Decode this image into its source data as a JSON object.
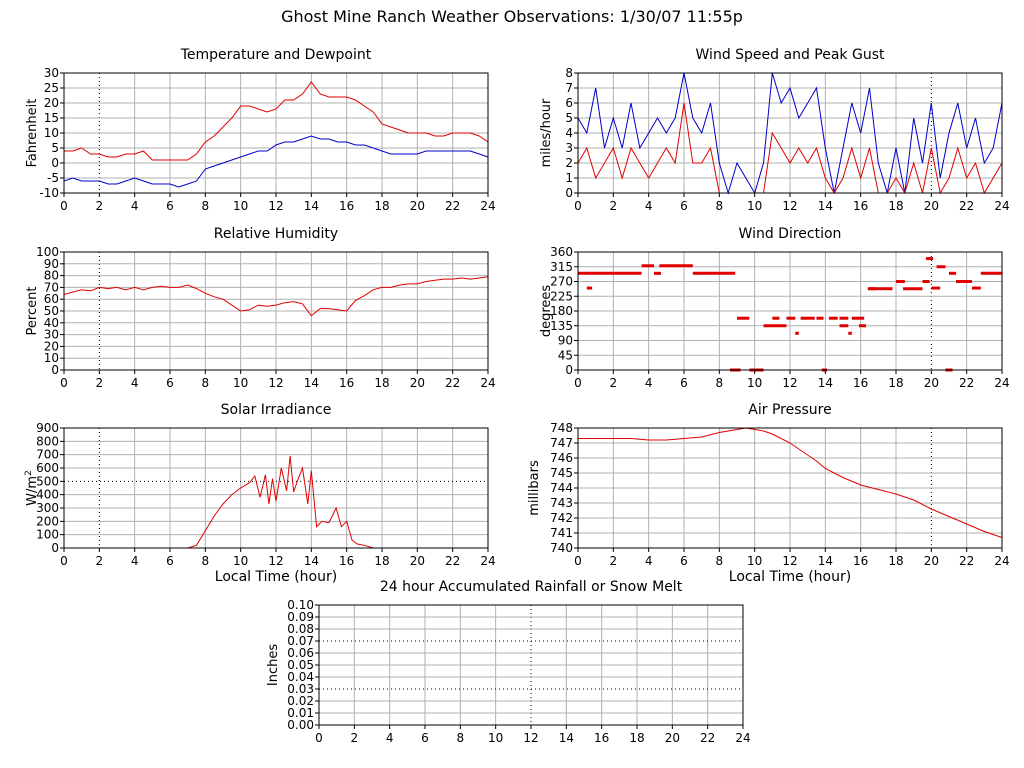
{
  "page": {
    "title": "Ghost Mine Ranch Weather Observations: 1/30/07 11:55p"
  },
  "colors": {
    "series_red": "#e00000",
    "series_blue": "#0000cc",
    "grid": "#b0b0b0",
    "frame": "#000000"
  },
  "chart_data": [
    {
      "id": "temperature",
      "type": "line",
      "title": "Temperature and Dewpoint",
      "xlabel": "",
      "ylabel": "Fahrenheit",
      "xlim": [
        0,
        24
      ],
      "ylim": [
        -10,
        30
      ],
      "xticks": [
        "0",
        "2",
        "4",
        "6",
        "8",
        "10",
        "12",
        "14",
        "16",
        "18",
        "20",
        "22",
        "24"
      ],
      "yticks": [
        "-10",
        "-5",
        "0",
        "5",
        "10",
        "15",
        "20",
        "25",
        "30"
      ],
      "grid": true,
      "series": [
        {
          "color": "#e00000",
          "x": [
            0,
            0.5,
            1,
            1.5,
            2,
            2.5,
            3,
            3.5,
            4,
            4.5,
            5,
            5.5,
            6,
            6.5,
            7,
            7.5,
            8,
            8.5,
            9,
            9.5,
            10,
            10.5,
            11,
            11.5,
            12,
            12.5,
            13,
            13.5,
            14,
            14.5,
            15,
            15.5,
            16,
            16.5,
            17,
            17.5,
            18,
            18.5,
            19,
            19.5,
            20,
            20.5,
            21,
            21.5,
            22,
            22.5,
            23,
            23.5,
            24
          ],
          "y": [
            4,
            4,
            5,
            3,
            3,
            2,
            2,
            3,
            3,
            4,
            1,
            1,
            1,
            1,
            1,
            3,
            7,
            9,
            12,
            15,
            19,
            19,
            18,
            17,
            18,
            21,
            21,
            23,
            27,
            23,
            22,
            22,
            22,
            21,
            19,
            17,
            13,
            12,
            11,
            10,
            10,
            10,
            9,
            9,
            10,
            10,
            10,
            9,
            7
          ]
        },
        {
          "color": "#0000cc",
          "x": [
            0,
            0.5,
            1,
            1.5,
            2,
            2.5,
            3,
            3.5,
            4,
            4.5,
            5,
            5.5,
            6,
            6.5,
            7,
            7.5,
            8,
            8.5,
            9,
            9.5,
            10,
            10.5,
            11,
            11.5,
            12,
            12.5,
            13,
            13.5,
            14,
            14.5,
            15,
            15.5,
            16,
            16.5,
            17,
            17.5,
            18,
            18.5,
            19,
            19.5,
            20,
            20.5,
            21,
            21.5,
            22,
            22.5,
            23,
            23.5,
            24
          ],
          "y": [
            -6,
            -5,
            -6,
            -6,
            -6,
            -7,
            -7,
            -6,
            -5,
            -6,
            -7,
            -7,
            -7,
            -8,
            -7,
            -6,
            -2,
            -1,
            0,
            1,
            2,
            3,
            4,
            4,
            6,
            7,
            7,
            8,
            9,
            8,
            8,
            7,
            7,
            6,
            6,
            5,
            4,
            3,
            3,
            3,
            3,
            4,
            4,
            4,
            4,
            4,
            4,
            3,
            2
          ]
        }
      ]
    },
    {
      "id": "wind_speed",
      "type": "line",
      "title": "Wind Speed and Peak Gust",
      "xlabel": "",
      "ylabel": "miles/hour",
      "xlim": [
        0,
        24
      ],
      "ylim": [
        0,
        8
      ],
      "xticks": [
        "0",
        "2",
        "4",
        "6",
        "8",
        "10",
        "12",
        "14",
        "16",
        "18",
        "20",
        "22",
        "24"
      ],
      "yticks": [
        "0",
        "1",
        "2",
        "3",
        "4",
        "5",
        "6",
        "7",
        "8"
      ],
      "grid": true,
      "series": [
        {
          "color": "#0000cc",
          "x": [
            0,
            0.5,
            1,
            1.5,
            2,
            2.5,
            3,
            3.5,
            4,
            4.5,
            5,
            5.5,
            6,
            6.5,
            7,
            7.5,
            8,
            8.5,
            9,
            9.5,
            10,
            10.5,
            11,
            11.5,
            12,
            12.5,
            13,
            13.5,
            14,
            14.5,
            15,
            15.5,
            16,
            16.5,
            17,
            17.5,
            18,
            18.5,
            19,
            19.5,
            20,
            20.5,
            21,
            21.5,
            22,
            22.5,
            23,
            23.5,
            24
          ],
          "y": [
            5,
            4,
            7,
            3,
            5,
            3,
            6,
            3,
            4,
            5,
            4,
            5,
            8,
            5,
            4,
            6,
            2,
            0,
            2,
            1,
            0,
            2,
            8,
            6,
            7,
            5,
            6,
            7,
            3,
            0,
            3,
            6,
            4,
            7,
            2,
            0,
            3,
            0,
            5,
            2,
            6,
            1,
            4,
            6,
            3,
            5,
            2,
            3,
            6
          ]
        },
        {
          "color": "#e00000",
          "x": [
            0,
            0.5,
            1,
            1.5,
            2,
            2.5,
            3,
            3.5,
            4,
            4.5,
            5,
            5.5,
            6,
            6.5,
            7,
            7.5,
            8,
            8.5,
            9,
            9.5,
            10,
            10.5,
            11,
            11.5,
            12,
            12.5,
            13,
            13.5,
            14,
            14.5,
            15,
            15.5,
            16,
            16.5,
            17,
            17.5,
            18,
            18.5,
            19,
            19.5,
            20,
            20.5,
            21,
            21.5,
            22,
            22.5,
            23,
            23.5,
            24
          ],
          "y": [
            2,
            3,
            1,
            2,
            3,
            1,
            3,
            2,
            1,
            2,
            3,
            2,
            6,
            2,
            2,
            3,
            0,
            0,
            0,
            0,
            0,
            0,
            4,
            3,
            2,
            3,
            2,
            3,
            1,
            0,
            1,
            3,
            1,
            3,
            0,
            0,
            1,
            0,
            2,
            0,
            3,
            0,
            1,
            3,
            1,
            2,
            0,
            1,
            2
          ]
        }
      ]
    },
    {
      "id": "humidity",
      "type": "line",
      "title": "Relative Humidity",
      "xlabel": "",
      "ylabel": "Percent",
      "xlim": [
        0,
        24
      ],
      "ylim": [
        0,
        100
      ],
      "xticks": [
        "0",
        "2",
        "4",
        "6",
        "8",
        "10",
        "12",
        "14",
        "16",
        "18",
        "20",
        "22",
        "24"
      ],
      "yticks": [
        "0",
        "10",
        "20",
        "30",
        "40",
        "50",
        "60",
        "70",
        "80",
        "90",
        "100"
      ],
      "grid": true,
      "series": [
        {
          "color": "#e00000",
          "x": [
            0,
            0.5,
            1,
            1.5,
            2,
            2.5,
            3,
            3.5,
            4,
            4.5,
            5,
            5.5,
            6,
            6.5,
            7,
            7.5,
            8,
            8.5,
            9,
            9.5,
            10,
            10.5,
            11,
            11.5,
            12,
            12.5,
            13,
            13.5,
            14,
            14.5,
            15,
            15.5,
            16,
            16.5,
            17,
            17.5,
            18,
            18.5,
            19,
            19.5,
            20,
            20.5,
            21,
            21.5,
            22,
            22.5,
            23,
            23.5,
            24
          ],
          "y": [
            64,
            66,
            68,
            67,
            70,
            69,
            70,
            68,
            70,
            68,
            70,
            71,
            70,
            70,
            72,
            69,
            65,
            62,
            60,
            55,
            50,
            51,
            55,
            54,
            55,
            57,
            58,
            56,
            46,
            52,
            52,
            51,
            50,
            59,
            63,
            68,
            70,
            70,
            72,
            73,
            73,
            75,
            76,
            77,
            77,
            78,
            77,
            78,
            79
          ]
        }
      ]
    },
    {
      "id": "wind_direction",
      "type": "scatter",
      "title": "Wind Direction",
      "xlabel": "",
      "ylabel": "degrees",
      "xlim": [
        0,
        24
      ],
      "ylim": [
        0,
        360
      ],
      "xticks": [
        "0",
        "2",
        "4",
        "6",
        "8",
        "10",
        "12",
        "14",
        "16",
        "18",
        "20",
        "22",
        "24"
      ],
      "yticks": [
        "0",
        "45",
        "90",
        "135",
        "180",
        "225",
        "270",
        "315",
        "360"
      ],
      "grid": true,
      "series": [
        {
          "color": "#e00000",
          "segments": [
            [
              0,
              3.6,
              295
            ],
            [
              0.5,
              0.8,
              250
            ],
            [
              3.6,
              4.3,
              318
            ],
            [
              4.3,
              4.7,
              295
            ],
            [
              4.6,
              6.5,
              318
            ],
            [
              6.5,
              8.9,
              295
            ],
            [
              8.6,
              9.2,
              0
            ],
            [
              9.0,
              9.7,
              158
            ],
            [
              9.7,
              10.5,
              0
            ],
            [
              10.5,
              11.8,
              135
            ],
            [
              11.0,
              11.4,
              158
            ],
            [
              11.8,
              12.3,
              158
            ],
            [
              12.3,
              12.5,
              112
            ],
            [
              12.6,
              13.4,
              158
            ],
            [
              13.5,
              13.9,
              158
            ],
            [
              13.8,
              14.1,
              0
            ],
            [
              14.2,
              14.7,
              158
            ],
            [
              14.8,
              15.3,
              158
            ],
            [
              14.8,
              15.3,
              135
            ],
            [
              15.3,
              15.5,
              112
            ],
            [
              15.5,
              16.2,
              158
            ],
            [
              15.9,
              16.3,
              135
            ],
            [
              16.4,
              16.8,
              248
            ],
            [
              16.5,
              17.0,
              248
            ],
            [
              17.0,
              17.8,
              248
            ],
            [
              18.0,
              18.5,
              270
            ],
            [
              18.4,
              19.5,
              248
            ],
            [
              19.5,
              19.9,
              270
            ],
            [
              19.7,
              20.1,
              340
            ],
            [
              20.0,
              20.5,
              250
            ],
            [
              20.3,
              20.8,
              315
            ],
            [
              20.8,
              21.2,
              0
            ],
            [
              21.0,
              21.4,
              295
            ],
            [
              21.4,
              22.3,
              270
            ],
            [
              22.3,
              22.8,
              250
            ],
            [
              22.8,
              24,
              295
            ]
          ]
        }
      ]
    },
    {
      "id": "solar",
      "type": "line",
      "title": "Solar Irradiance",
      "xlabel": "Local Time (hour)",
      "ylabel": "W/m",
      "ylabel_sup": "2",
      "xlim": [
        0,
        24
      ],
      "ylim": [
        0,
        900
      ],
      "xticks": [
        "0",
        "2",
        "4",
        "6",
        "8",
        "10",
        "12",
        "14",
        "16",
        "18",
        "20",
        "22",
        "24"
      ],
      "yticks": [
        "0",
        "100",
        "200",
        "300",
        "400",
        "500",
        "600",
        "700",
        "800",
        "900"
      ],
      "grid": true,
      "series": [
        {
          "color": "#e00000",
          "x": [
            0,
            7,
            7.5,
            8,
            8.5,
            9,
            9.5,
            10,
            10.5,
            10.8,
            11.1,
            11.4,
            11.6,
            11.8,
            12.0,
            12.3,
            12.6,
            12.8,
            13.0,
            13.2,
            13.5,
            13.8,
            14.0,
            14.3,
            14.6,
            15.0,
            15.4,
            15.7,
            16.0,
            16.3,
            16.6,
            17.0,
            17.5,
            24
          ],
          "y": [
            0,
            0,
            20,
            130,
            240,
            330,
            400,
            450,
            490,
            540,
            380,
            550,
            330,
            520,
            350,
            600,
            430,
            690,
            420,
            500,
            600,
            330,
            580,
            160,
            200,
            190,
            300,
            160,
            200,
            60,
            30,
            20,
            0,
            0
          ]
        }
      ]
    },
    {
      "id": "pressure",
      "type": "line",
      "title": "Air Pressure",
      "xlabel": "Local Time (hour)",
      "ylabel": "millibars",
      "xlim": [
        0,
        24
      ],
      "ylim": [
        740,
        748
      ],
      "xticks": [
        "0",
        "2",
        "4",
        "6",
        "8",
        "10",
        "12",
        "14",
        "16",
        "18",
        "20",
        "22",
        "24"
      ],
      "yticks": [
        "740",
        "741",
        "742",
        "743",
        "744",
        "745",
        "746",
        "747",
        "748"
      ],
      "grid": true,
      "series": [
        {
          "color": "#e00000",
          "x": [
            0,
            1,
            2,
            3,
            4,
            5,
            6,
            7,
            8,
            9,
            9.5,
            10,
            10.5,
            11,
            11.5,
            12,
            12.5,
            13,
            13.5,
            14,
            14.5,
            15,
            16,
            17,
            18,
            19,
            20,
            21,
            22,
            23,
            24
          ],
          "y": [
            747.3,
            747.3,
            747.3,
            747.3,
            747.2,
            747.2,
            747.3,
            747.4,
            747.7,
            747.9,
            748.0,
            747.9,
            747.8,
            747.6,
            747.3,
            747.0,
            746.6,
            746.2,
            745.8,
            745.3,
            745.0,
            744.7,
            744.2,
            743.9,
            743.6,
            743.2,
            742.6,
            742.1,
            741.6,
            741.1,
            740.7
          ]
        }
      ]
    },
    {
      "id": "rainfall",
      "type": "line",
      "title": "24 hour Accumulated Rainfall or Snow Melt",
      "xlabel": "",
      "ylabel": "Inches",
      "xlim": [
        0,
        24
      ],
      "ylim": [
        0,
        0.1
      ],
      "xticks": [
        "0",
        "2",
        "4",
        "6",
        "8",
        "10",
        "12",
        "14",
        "16",
        "18",
        "20",
        "22",
        "24"
      ],
      "yticks": [
        "0.00",
        "0.01",
        "0.02",
        "0.03",
        "0.04",
        "0.05",
        "0.06",
        "0.07",
        "0.08",
        "0.09",
        "0.10"
      ],
      "grid": true,
      "series": [
        {
          "color": "#e00000",
          "x": [
            0,
            24
          ],
          "y": [
            0,
            0
          ]
        }
      ]
    }
  ]
}
